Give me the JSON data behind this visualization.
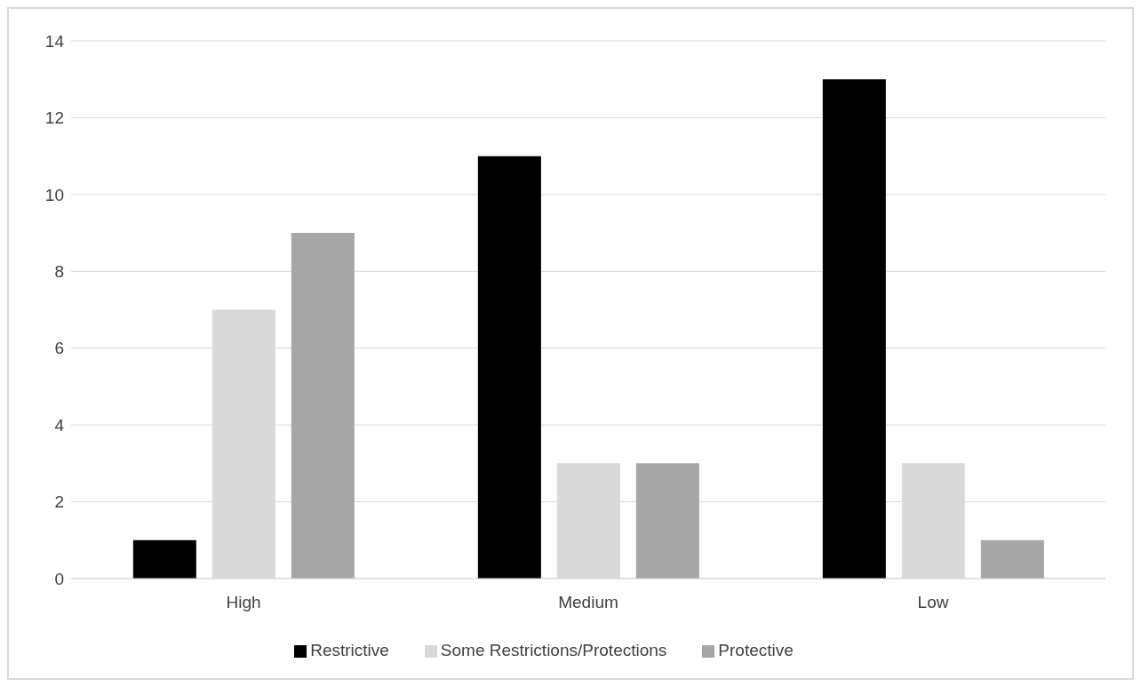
{
  "chart_data": {
    "type": "bar",
    "categories": [
      "High",
      "Medium",
      "Low"
    ],
    "series": [
      {
        "name": "Restrictive",
        "color": "#000000",
        "values": [
          1,
          11,
          13
        ]
      },
      {
        "name": "Some Restrictions/Protections",
        "color": "#d9d9d9",
        "values": [
          7,
          3,
          3
        ]
      },
      {
        "name": "Protective",
        "color": "#a6a6a6",
        "values": [
          9,
          3,
          1
        ]
      }
    ],
    "ylim": [
      0,
      14
    ],
    "yticks": [
      0,
      2,
      4,
      6,
      8,
      10,
      12,
      14
    ],
    "grid": "y",
    "legend": "bottom"
  }
}
